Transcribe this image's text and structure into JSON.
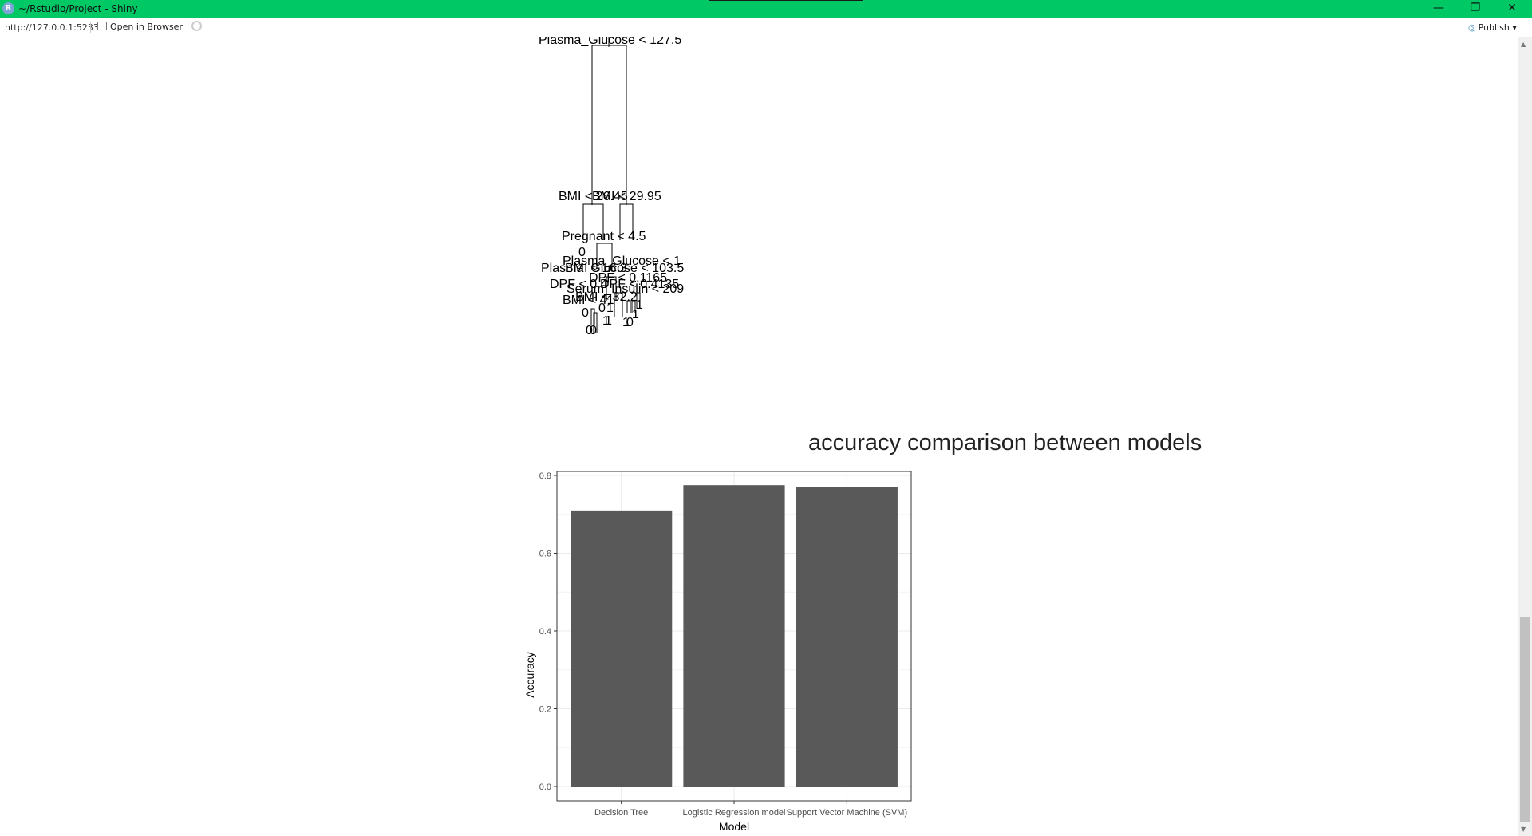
{
  "window": {
    "title": "~/Rstudio/Project - Shiny",
    "logo_letter": "R",
    "controls": {
      "minimize": "—",
      "restore": "❐",
      "close": "✕"
    }
  },
  "toolbar": {
    "url": "http://127.0.0.1:5233",
    "open_in_browser": "Open in Browser",
    "publish": "Publish",
    "publish_icon": "publish-icon"
  },
  "tree": {
    "labels": [
      "Plasma_Glucose < 127.5",
      "BMI < 26.45",
      "BMI < 29.95",
      "Pregnant < 4.5",
      "0",
      "Plasma_Glucose < 1",
      "BMI < 16.3",
      "Plasma_Glucose < 103.5",
      "DPF < 0.4",
      "DPF < 0.1165",
      "DPF < 0.4135",
      "Serum_Insulin < 209",
      "BMI < 32.2",
      "BMI < 41",
      "0",
      "0",
      "0",
      "1",
      "0",
      "1",
      "1",
      "0",
      "1",
      "1",
      "1"
    ]
  },
  "chart_data": {
    "type": "bar",
    "title": "accuracy comparison between models",
    "xlabel": "Model",
    "ylabel": "Accuracy",
    "categories": [
      "Decision Tree",
      "Logistic Regression model",
      "Support Vector Machine (SVM)"
    ],
    "values": [
      0.71,
      0.775,
      0.771
    ],
    "ylim": [
      0,
      0.8
    ],
    "yticks": [
      "0.0",
      "0.2",
      "0.4",
      "0.6",
      "0.8"
    ],
    "ytick_values": [
      0,
      0.2,
      0.4,
      0.6,
      0.8
    ],
    "grid": true,
    "bar_color": "#595959"
  }
}
